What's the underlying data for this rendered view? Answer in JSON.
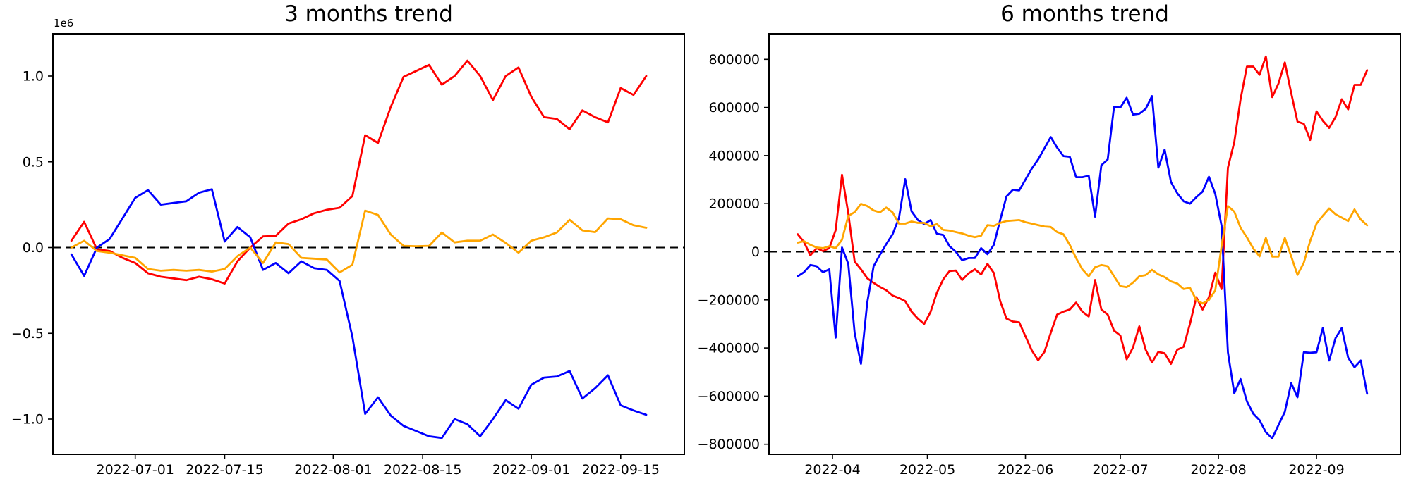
{
  "figure": {
    "background": "#ffffff"
  },
  "colors": {
    "spine": "#000000",
    "zero_line": "#000000"
  },
  "chart_data": [
    {
      "type": "line",
      "title": "3 months trend",
      "y_offset_label": "1e6",
      "grid": false,
      "legend": "none",
      "zero_line_dashed": true,
      "x_ticks": [
        {
          "date": "2022-07-01",
          "label": "2022-07-01"
        },
        {
          "date": "2022-07-15",
          "label": "2022-07-15"
        },
        {
          "date": "2022-08-01",
          "label": "2022-08-01"
        },
        {
          "date": "2022-08-15",
          "label": "2022-08-15"
        },
        {
          "date": "2022-09-01",
          "label": "2022-09-01"
        },
        {
          "date": "2022-09-15",
          "label": "2022-09-15"
        }
      ],
      "y_ticks": [
        {
          "value": 1000000,
          "label": "1.0"
        },
        {
          "value": 500000,
          "label": "0.5"
        },
        {
          "value": 0,
          "label": "0.0"
        },
        {
          "value": -500000,
          "label": "−0.5"
        },
        {
          "value": -1000000,
          "label": "−1.0"
        }
      ],
      "x_range": [
        "2022-06-18",
        "2022-09-25"
      ],
      "y_range": [
        -1205000,
        1246000
      ],
      "dates": [
        "2022-06-21",
        "2022-06-23",
        "2022-06-25",
        "2022-06-27",
        "2022-06-29",
        "2022-07-01",
        "2022-07-03",
        "2022-07-05",
        "2022-07-07",
        "2022-07-09",
        "2022-07-11",
        "2022-07-13",
        "2022-07-15",
        "2022-07-17",
        "2022-07-19",
        "2022-07-21",
        "2022-07-23",
        "2022-07-25",
        "2022-07-27",
        "2022-07-29",
        "2022-07-31",
        "2022-08-02",
        "2022-08-04",
        "2022-08-06",
        "2022-08-08",
        "2022-08-10",
        "2022-08-12",
        "2022-08-14",
        "2022-08-16",
        "2022-08-18",
        "2022-08-20",
        "2022-08-22",
        "2022-08-24",
        "2022-08-26",
        "2022-08-28",
        "2022-08-30",
        "2022-09-01",
        "2022-09-03",
        "2022-09-05",
        "2022-09-07",
        "2022-09-09",
        "2022-09-11",
        "2022-09-13",
        "2022-09-15",
        "2022-09-17",
        "2022-09-19"
      ],
      "series": [
        {
          "name": "red",
          "color": "#ff0000",
          "values": [
            40000,
            150000,
            -10000,
            -20000,
            -60000,
            -90000,
            -150000,
            -170000,
            -180000,
            -190000,
            -170000,
            -185000,
            -210000,
            -80000,
            0,
            65000,
            68000,
            140000,
            165000,
            200000,
            220000,
            232000,
            300000,
            655000,
            610000,
            820000,
            995000,
            1030000,
            1065000,
            950000,
            1000000,
            1090000,
            1000000,
            860000,
            1000000,
            1050000,
            880000,
            760000,
            750000,
            690000,
            800000,
            760000,
            730000,
            930000,
            890000,
            1000000
          ]
        },
        {
          "name": "blue",
          "color": "#0000ff",
          "values": [
            -40000,
            -165000,
            0,
            50000,
            170000,
            290000,
            335000,
            250000,
            260000,
            270000,
            320000,
            340000,
            35000,
            120000,
            60000,
            -130000,
            -90000,
            -150000,
            -80000,
            -120000,
            -130000,
            -195000,
            -520000,
            -970000,
            -873000,
            -980000,
            -1040000,
            -1070000,
            -1100000,
            -1110000,
            -1000000,
            -1030000,
            -1100000,
            -1000000,
            -890000,
            -940000,
            -800000,
            -758000,
            -752000,
            -720000,
            -880000,
            -820000,
            -745000,
            -920000,
            -950000,
            -975000
          ]
        },
        {
          "name": "orange",
          "color": "#ffa500",
          "values": [
            0,
            40000,
            -20000,
            -30000,
            -45000,
            -60000,
            -125000,
            -135000,
            -130000,
            -135000,
            -130000,
            -140000,
            -125000,
            -50000,
            0,
            -90000,
            30000,
            20000,
            -60000,
            -65000,
            -70000,
            -145000,
            -100000,
            215000,
            190000,
            76000,
            10000,
            8000,
            10000,
            88000,
            30000,
            40000,
            40000,
            76000,
            27000,
            -30000,
            40000,
            60000,
            88000,
            162000,
            100000,
            90000,
            170000,
            165000,
            130000,
            115000
          ]
        }
      ]
    },
    {
      "type": "line",
      "title": "6 months trend",
      "y_offset_label": "",
      "grid": false,
      "legend": "none",
      "zero_line_dashed": true,
      "x_ticks": [
        {
          "date": "2022-04-01",
          "label": "2022-04"
        },
        {
          "date": "2022-05-01",
          "label": "2022-05"
        },
        {
          "date": "2022-06-01",
          "label": "2022-06"
        },
        {
          "date": "2022-07-01",
          "label": "2022-07"
        },
        {
          "date": "2022-08-01",
          "label": "2022-08"
        },
        {
          "date": "2022-09-01",
          "label": "2022-09"
        }
      ],
      "y_ticks": [
        {
          "value": 800000,
          "label": "800000"
        },
        {
          "value": 600000,
          "label": "600000"
        },
        {
          "value": 400000,
          "label": "400000"
        },
        {
          "value": 200000,
          "label": "200000"
        },
        {
          "value": 0,
          "label": "0"
        },
        {
          "value": -200000,
          "label": "−200000"
        },
        {
          "value": -400000,
          "label": "−400000"
        },
        {
          "value": -600000,
          "label": "−600000"
        },
        {
          "value": -800000,
          "label": "−800000"
        }
      ],
      "x_range": [
        "2022-03-16",
        "2022-09-28"
      ],
      "y_range": [
        -842000,
        906000
      ],
      "dates": [
        "2022-03-21",
        "2022-03-23",
        "2022-03-25",
        "2022-03-27",
        "2022-03-29",
        "2022-03-31",
        "2022-04-02",
        "2022-04-04",
        "2022-04-06",
        "2022-04-08",
        "2022-04-10",
        "2022-04-12",
        "2022-04-14",
        "2022-04-16",
        "2022-04-18",
        "2022-04-20",
        "2022-04-22",
        "2022-04-24",
        "2022-04-26",
        "2022-04-28",
        "2022-04-30",
        "2022-05-02",
        "2022-05-04",
        "2022-05-06",
        "2022-05-08",
        "2022-05-10",
        "2022-05-12",
        "2022-05-14",
        "2022-05-16",
        "2022-05-18",
        "2022-05-20",
        "2022-05-22",
        "2022-05-24",
        "2022-05-26",
        "2022-05-28",
        "2022-05-30",
        "2022-06-01",
        "2022-06-03",
        "2022-06-05",
        "2022-06-07",
        "2022-06-09",
        "2022-06-11",
        "2022-06-13",
        "2022-06-15",
        "2022-06-17",
        "2022-06-19",
        "2022-06-21",
        "2022-06-23",
        "2022-06-25",
        "2022-06-27",
        "2022-06-29",
        "2022-07-01",
        "2022-07-03",
        "2022-07-05",
        "2022-07-07",
        "2022-07-09",
        "2022-07-11",
        "2022-07-13",
        "2022-07-15",
        "2022-07-17",
        "2022-07-19",
        "2022-07-21",
        "2022-07-23",
        "2022-07-25",
        "2022-07-27",
        "2022-07-29",
        "2022-07-31",
        "2022-08-02",
        "2022-08-04",
        "2022-08-06",
        "2022-08-08",
        "2022-08-10",
        "2022-08-12",
        "2022-08-14",
        "2022-08-16",
        "2022-08-18",
        "2022-08-20",
        "2022-08-22",
        "2022-08-24",
        "2022-08-26",
        "2022-08-28",
        "2022-08-30",
        "2022-09-01",
        "2022-09-03",
        "2022-09-05",
        "2022-09-07",
        "2022-09-09",
        "2022-09-11",
        "2022-09-13",
        "2022-09-15",
        "2022-09-17"
      ],
      "series": [
        {
          "name": "red",
          "color": "#ff0000",
          "values": [
            73000,
            40000,
            -15000,
            15000,
            3000,
            15000,
            90000,
            320000,
            160000,
            -40000,
            -73000,
            -110000,
            -129000,
            -146000,
            -160000,
            -182000,
            -192000,
            -205000,
            -249000,
            -278000,
            -300000,
            -250000,
            -170000,
            -115000,
            -80000,
            -78000,
            -117000,
            -90000,
            -73000,
            -94000,
            -50000,
            -88000,
            -205000,
            -278000,
            -290000,
            -293000,
            -351000,
            -410000,
            -451000,
            -416000,
            -337000,
            -261000,
            -249000,
            -240000,
            -211000,
            -249000,
            -269000,
            -117000,
            -240000,
            -261000,
            -328000,
            -348000,
            -447000,
            -398000,
            -310000,
            -407000,
            -460000,
            -416000,
            -422000,
            -466000,
            -407000,
            -395000,
            -300000,
            -189000,
            -240000,
            -189000,
            -87000,
            -155000,
            350000,
            456000,
            634000,
            770000,
            770000,
            736000,
            812000,
            643000,
            700000,
            787000,
            660000,
            541000,
            532000,
            465000,
            584000,
            545000,
            515000,
            560000,
            634000,
            592000,
            694000,
            694000,
            755000
          ]
        },
        {
          "name": "blue",
          "color": "#0000ff",
          "values": [
            -102000,
            -85000,
            -55000,
            -60000,
            -85000,
            -73000,
            -357000,
            18000,
            -50000,
            -337000,
            -466000,
            -210000,
            -60000,
            -12000,
            32000,
            73000,
            140000,
            302000,
            168000,
            132000,
            115000,
            132000,
            75000,
            70000,
            23000,
            0,
            -35000,
            -26000,
            -26000,
            15000,
            -10000,
            29000,
            132000,
            230000,
            258000,
            255000,
            300000,
            346000,
            384000,
            430000,
            477000,
            433000,
            398000,
            395000,
            310000,
            310000,
            316000,
            146000,
            360000,
            384000,
            603000,
            600000,
            640000,
            570000,
            574000,
            594000,
            647000,
            350000,
            425000,
            290000,
            243000,
            210000,
            200000,
            227000,
            250000,
            312000,
            240000,
            108000,
            -418000,
            -588000,
            -529000,
            -622000,
            -673000,
            -700000,
            -750000,
            -775000,
            -720000,
            -665000,
            -546000,
            -605000,
            -418000,
            -420000,
            -418000,
            -317000,
            -452000,
            -359000,
            -317000,
            -440000,
            -480000,
            -452000,
            -590000
          ]
        },
        {
          "name": "orange",
          "color": "#ffa500",
          "values": [
            38000,
            44000,
            29000,
            18000,
            15000,
            23000,
            15000,
            50000,
            149000,
            165000,
            199000,
            190000,
            172000,
            164000,
            184000,
            164000,
            117000,
            117000,
            126000,
            120000,
            120000,
            106000,
            115000,
            91000,
            88000,
            82000,
            76000,
            67000,
            61000,
            67000,
            111000,
            108000,
            120000,
            128000,
            130000,
            132000,
            123000,
            117000,
            111000,
            105000,
            103000,
            82000,
            73000,
            29000,
            -26000,
            -73000,
            -102000,
            -64000,
            -55000,
            -60000,
            -102000,
            -143000,
            -147000,
            -128000,
            -102000,
            -97000,
            -75000,
            -94000,
            -105000,
            -123000,
            -132000,
            -155000,
            -150000,
            -200000,
            -215000,
            -200000,
            -160000,
            23000,
            190000,
            167000,
            100000,
            60000,
            14000,
            -19000,
            57000,
            -20000,
            -20000,
            57000,
            -19000,
            -96000,
            -45000,
            45000,
            117000,
            150000,
            180000,
            156000,
            142000,
            128000,
            176000,
            134000,
            110000
          ]
        }
      ]
    }
  ]
}
